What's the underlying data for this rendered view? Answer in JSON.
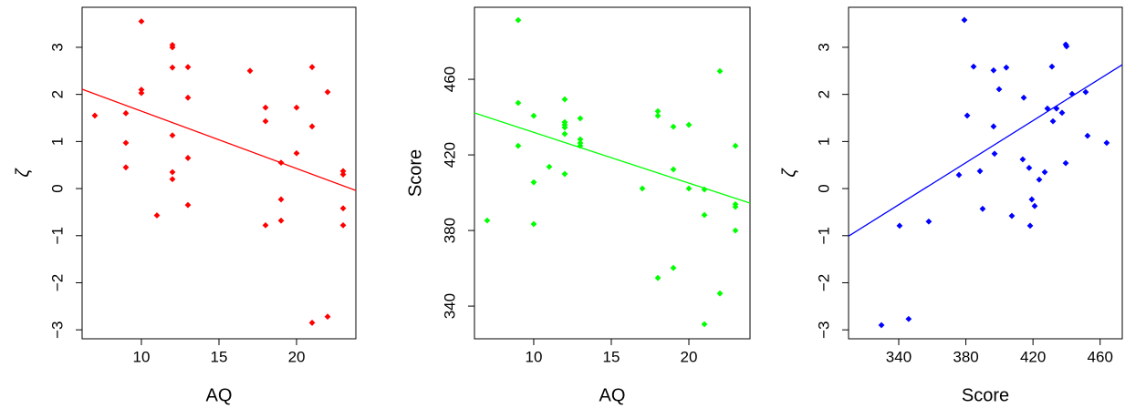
{
  "chart_data": [
    {
      "type": "scatter",
      "x_label": "AQ",
      "y_label": "ζ",
      "x": [
        7,
        9,
        9,
        9,
        10,
        10,
        10,
        11,
        12,
        12,
        12,
        12,
        12,
        12,
        13,
        13,
        13,
        13,
        17,
        18,
        18,
        18,
        19,
        19,
        19,
        20,
        20,
        21,
        21,
        21,
        22,
        22,
        23,
        23,
        23,
        23
      ],
      "series": [
        {
          "color": "#ff0000",
          "values": [
            1.55,
            1.6,
            0.97,
            0.45,
            3.55,
            2.1,
            2.03,
            -0.57,
            3.05,
            3.0,
            2.57,
            1.13,
            0.35,
            0.2,
            2.58,
            1.93,
            0.65,
            -0.35,
            2.5,
            1.72,
            1.43,
            -0.78,
            0.55,
            -0.23,
            -0.68,
            1.72,
            0.75,
            2.58,
            1.32,
            -2.85,
            2.05,
            -2.72,
            0.37,
            0.3,
            -0.42,
            -0.78
          ]
        }
      ],
      "trend_line": {
        "color": "#ff0000",
        "x": [
          6.18,
          23.82
        ],
        "y": [
          2.11,
          -0.04
        ]
      },
      "xlim": [
        6.18,
        23.82
      ],
      "ylim": [
        -3.19,
        3.85
      ],
      "xticks": [
        10,
        15,
        20
      ],
      "yticks": [
        {
          "value": -3,
          "label": "−3"
        },
        {
          "value": -2,
          "label": "−2"
        },
        {
          "value": -1,
          "label": "−1"
        },
        0,
        1,
        2,
        3
      ]
    },
    {
      "type": "scatter",
      "x_label": "AQ",
      "y_label": "Score",
      "x": [
        7,
        9,
        9,
        9,
        10,
        10,
        10,
        11,
        12,
        12,
        12,
        12,
        12,
        12,
        13,
        13,
        13,
        13,
        17,
        18,
        18,
        18,
        19,
        19,
        19,
        20,
        20,
        21,
        21,
        21,
        22,
        22,
        23,
        23,
        23,
        23
      ],
      "series": [
        {
          "color": "#00ff00",
          "values": [
            385.3,
            491.3,
            447.5,
            424.8,
            440.7,
            405.5,
            383.4,
            413.7,
            449.4,
            437.3,
            435.9,
            434.5,
            431.1,
            409.9,
            439.3,
            428.2,
            426.3,
            424.8,
            402.2,
            443.1,
            440.7,
            354.9,
            434.9,
            412.3,
            360.2,
            435.9,
            402.2,
            401.7,
            388.2,
            330.4,
            464.3,
            346.7,
            424.8,
            393.9,
            392.5,
            380.0
          ]
        }
      ],
      "trend_line": {
        "color": "#00ff00",
        "x": [
          6.18,
          23.94
        ],
        "y": [
          442.2,
          394.5
        ]
      },
      "xlim": [
        6.18,
        23.94
      ],
      "ylim": [
        322.7,
        498.1
      ],
      "xticks": [
        10,
        15,
        20
      ],
      "yticks": [
        340,
        380,
        420,
        460
      ]
    },
    {
      "type": "scatter",
      "x_label": "Score",
      "y_label": "ζ",
      "x": [
        329.7,
        340.5,
        345.9,
        357.9,
        375.9,
        379.1,
        380.8,
        384.6,
        388.4,
        390.0,
        396.5,
        396.5,
        397.1,
        399.8,
        404.1,
        407.4,
        414.5,
        413.9,
        417.7,
        418.3,
        419.3,
        421.0,
        423.7,
        427.0,
        428.6,
        431.3,
        431.9,
        434.0,
        437.3,
        439.5,
        440.0,
        439.5,
        443.3,
        451.4,
        452.5,
        463.9
      ],
      "series": [
        {
          "color": "#0000ff",
          "values": [
            -2.9,
            -0.79,
            -2.77,
            -0.7,
            0.29,
            3.58,
            1.55,
            2.59,
            0.37,
            -0.43,
            2.51,
            1.32,
            0.74,
            2.11,
            2.57,
            -0.58,
            1.93,
            0.62,
            0.44,
            -0.79,
            -0.23,
            -0.37,
            0.19,
            0.35,
            1.7,
            2.59,
            1.43,
            1.7,
            1.61,
            3.06,
            3.02,
            0.54,
            2.01,
            2.05,
            1.12,
            0.97
          ]
        }
      ],
      "trend_line": {
        "color": "#0000ff",
        "x": [
          310.1,
          473.2
        ],
        "y": [
          -1.01,
          2.63
        ]
      },
      "xlim": [
        310.1,
        473.2
      ],
      "ylim": [
        -3.19,
        3.85
      ],
      "xticks": [
        340,
        380,
        420,
        460
      ],
      "yticks": [
        {
          "value": -3,
          "label": "−3"
        },
        {
          "value": -2,
          "label": "−2"
        },
        {
          "value": -1,
          "label": "−1"
        },
        0,
        1,
        2,
        3
      ]
    }
  ]
}
